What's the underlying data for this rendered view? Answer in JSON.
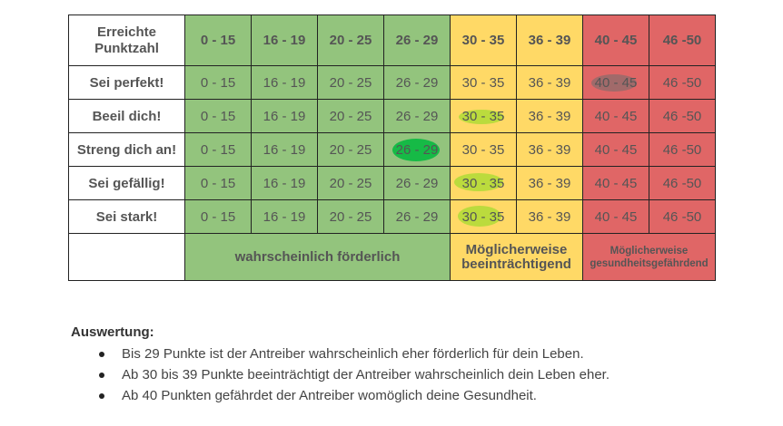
{
  "table": {
    "corner_label_line1": "Erreichte",
    "corner_label_line2": "Punktzahl",
    "column_headers": [
      "0 - 15",
      "16 - 19",
      "20 - 25",
      "26 - 29",
      "30 - 35",
      "36 - 39",
      "40 - 45",
      "46 -50"
    ],
    "rows": [
      {
        "label": "Sei perfekt!",
        "cells": [
          "0 - 15",
          "16 - 19",
          "20 - 25",
          "26 - 29",
          "30 - 35",
          "36 - 39",
          "40 - 45",
          "46 -50"
        ]
      },
      {
        "label": "Beeil dich!",
        "cells": [
          "0 - 15",
          "16 - 19",
          "20 - 25",
          "26 - 29",
          "30 - 35",
          "36 - 39",
          "40 - 45",
          "46 -50"
        ]
      },
      {
        "label": "Streng dich an!",
        "cells": [
          "0 - 15",
          "16 - 19",
          "20 - 25",
          "26 - 29",
          "30 - 35",
          "36 - 39",
          "40 - 45",
          "46 -50"
        ]
      },
      {
        "label": "Sei gefällig!",
        "cells": [
          "0 - 15",
          "16 - 19",
          "20 - 25",
          "26 - 29",
          "30 - 35",
          "36 - 39",
          "40 - 45",
          "46 -50"
        ]
      },
      {
        "label": "Sei stark!",
        "cells": [
          "0 - 15",
          "16 - 19",
          "20 - 25",
          "26 - 29",
          "30 - 35",
          "36 - 39",
          "40 - 45",
          "46 -50"
        ]
      }
    ],
    "legend": {
      "green": "wahrscheinlich förderlich",
      "yellow_line1": "Möglicherweise",
      "yellow_line2": "beeinträchtigend",
      "red_line1": "Möglicherweise",
      "red_line2": "gesundheitsgefährdend"
    },
    "colors": {
      "green": "#93c47d",
      "yellow": "#ffd966",
      "red": "#e06666"
    }
  },
  "evaluation": {
    "heading": "Auswertung:",
    "items": [
      "Bis 29 Punkte ist der Antreiber wahrscheinlich eher förderlich für dein Leben.",
      "Ab 30 bis 39 Punkte beeinträchtigt der Antreiber wahrscheinlich dein Leben eher.",
      "Ab 40 Punkten gefährdet der Antreiber womöglich deine Gesundheit."
    ]
  }
}
